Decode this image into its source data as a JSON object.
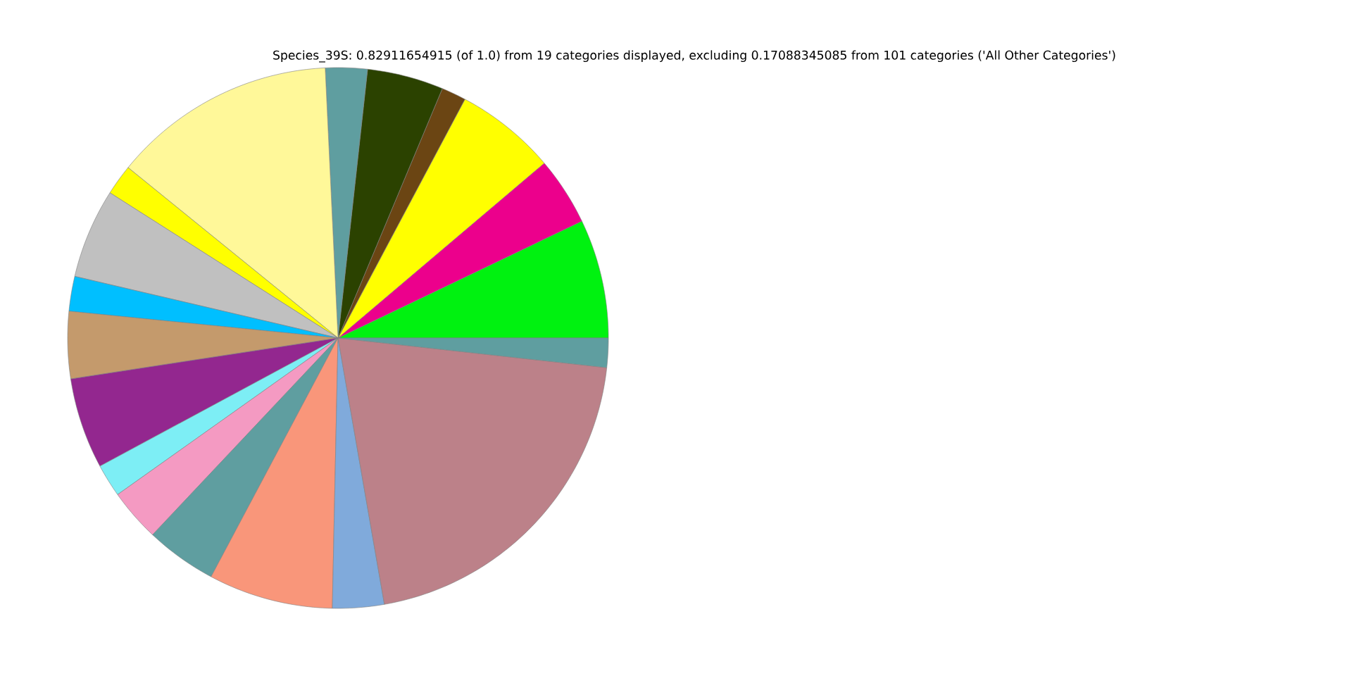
{
  "chart_data": {
    "type": "pie",
    "title": "Species_39S: 0.82911654915 (of 1.0) from 19 categories displayed, excluding 0.17088345085 from 101 categories ('All Other Categories')",
    "categories": [
      null,
      null,
      null,
      null,
      null,
      null,
      null,
      null,
      null,
      null,
      null,
      null,
      null,
      null,
      null,
      null,
      null,
      null,
      null
    ],
    "values": [
      7.11,
      4.08,
      6.03,
      1.47,
      4.56,
      2.5,
      13.39,
      1.83,
      5.36,
      2.08,
      4.0,
      5.44,
      1.97,
      3.14,
      4.25,
      7.44,
      3.08,
      20.5,
      1.75
    ],
    "colors": [
      "#00f210",
      "#ec008c",
      "#ffff00",
      "#6b4513",
      "#2b4200",
      "#5f9ea0",
      "#fff899",
      "#ffff00",
      "#c0c0c0",
      "#00bfff",
      "#c49a6c",
      "#93278f",
      "#7deef5",
      "#f49ac2",
      "#5f9ea0",
      "#f9967a",
      "#80aadb",
      "#bc8189",
      "#5f9ea0"
    ]
  }
}
